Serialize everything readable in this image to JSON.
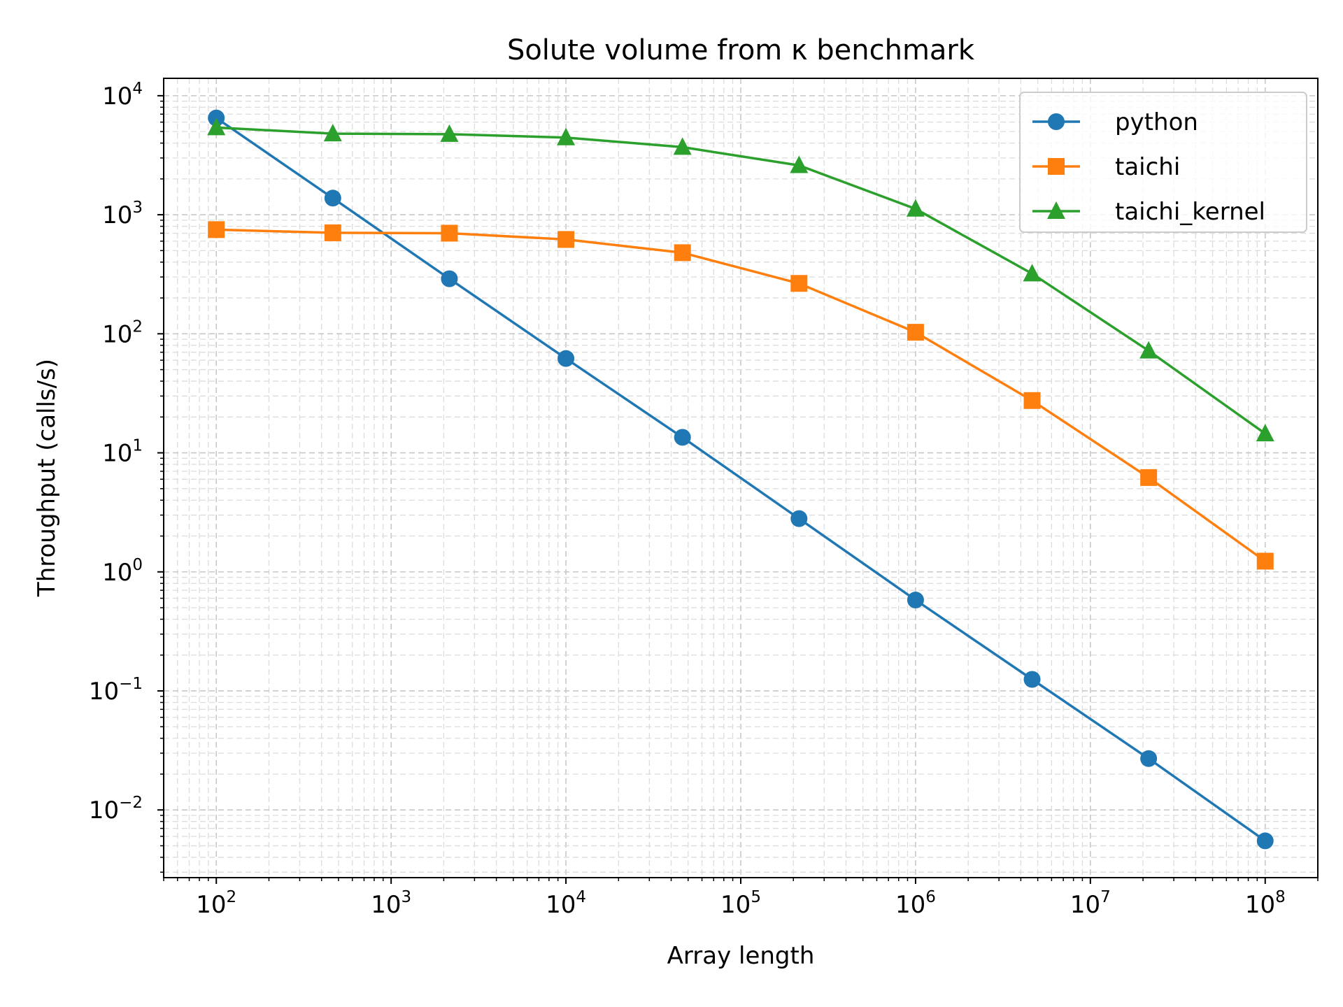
{
  "chart_data": {
    "type": "line",
    "title": "Solute volume from κ benchmark",
    "xlabel": "Array length",
    "ylabel": "Throughput (calls/s)",
    "xscale": "log",
    "yscale": "log",
    "xlim": [
      50,
      200000000
    ],
    "ylim": [
      0.0027,
      14000
    ],
    "x": [
      100,
      464,
      2154,
      10000,
      46416,
      215443,
      1000000,
      4641589,
      21544347,
      100000000
    ],
    "xticks": [
      100,
      1000,
      10000,
      100000,
      1000000,
      10000000,
      100000000
    ],
    "xtick_labels": [
      {
        "base": "10",
        "exp": "2"
      },
      {
        "base": "10",
        "exp": "3"
      },
      {
        "base": "10",
        "exp": "4"
      },
      {
        "base": "10",
        "exp": "5"
      },
      {
        "base": "10",
        "exp": "6"
      },
      {
        "base": "10",
        "exp": "7"
      },
      {
        "base": "10",
        "exp": "8"
      }
    ],
    "yticks": [
      0.01,
      0.1,
      1,
      10,
      100,
      1000,
      10000
    ],
    "ytick_labels": [
      {
        "base": "10",
        "exp": "−2"
      },
      {
        "base": "10",
        "exp": "−1"
      },
      {
        "base": "10",
        "exp": "0"
      },
      {
        "base": "10",
        "exp": "1"
      },
      {
        "base": "10",
        "exp": "2"
      },
      {
        "base": "10",
        "exp": "3"
      },
      {
        "base": "10",
        "exp": "4"
      }
    ],
    "grid": true,
    "legend_position": "top-right",
    "series": [
      {
        "name": "python",
        "color": "#1f77b4",
        "marker": "circle",
        "values": [
          6500,
          1380,
          290,
          62,
          13.5,
          2.8,
          0.58,
          0.125,
          0.027,
          0.0055
        ]
      },
      {
        "name": "taichi",
        "color": "#ff7f0e",
        "marker": "square",
        "values": [
          750,
          705,
          700,
          620,
          480,
          265,
          103,
          27.5,
          6.2,
          1.23
        ]
      },
      {
        "name": "taichi_kernel",
        "color": "#2ca02c",
        "marker": "triangle",
        "values": [
          5400,
          4800,
          4750,
          4450,
          3700,
          2600,
          1120,
          320,
          72,
          14.5
        ]
      }
    ]
  }
}
